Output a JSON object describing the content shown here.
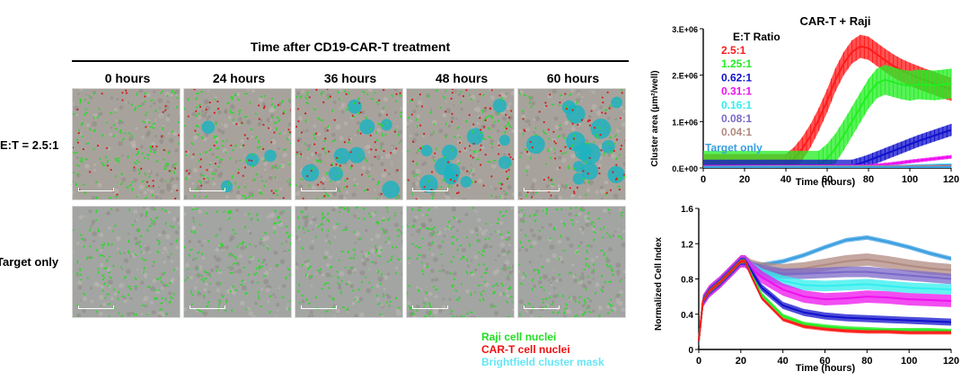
{
  "figure": {
    "title": "Time after CD19-CAR-T treatment",
    "columns": [
      "0 hours",
      "24 hours",
      "36 hours",
      "48 hours",
      "60 hours"
    ],
    "rows": [
      {
        "label": "E:T = 2.5:1",
        "clusters": [
          0,
          0.25,
          0.55,
          0.8,
          0.9
        ]
      },
      {
        "label": "Target only",
        "clusters": [
          0,
          0,
          0,
          0,
          0
        ]
      }
    ],
    "legend": [
      {
        "label": "Raji cell nuclei",
        "color": "#22dd22"
      },
      {
        "label": "CAR-T  cell nuclei",
        "color": "#ee1111"
      },
      {
        "label": "Brightfield cluster mask",
        "color": "#66e6f5"
      }
    ]
  },
  "chart_data": [
    {
      "type": "line",
      "title": "CAR-T + Raji",
      "xlabel": "Time (hours)",
      "ylabel": "Cluster area (μm²/well)",
      "xlim": [
        0,
        120
      ],
      "ylim": [
        0,
        3000000
      ],
      "x_ticks": [
        0,
        20,
        40,
        60,
        80,
        100,
        120
      ],
      "x_tick_labels": [
        "0",
        "20",
        "40",
        "60",
        "80",
        "100",
        "120"
      ],
      "y_ticks": [
        0,
        1000000,
        2000000,
        3000000
      ],
      "y_tick_labels": [
        "0.E+00",
        "1.E+06",
        "2.E+06",
        "3.E+06"
      ],
      "legend_title": "E:T Ratio",
      "legend_position": "top-left",
      "series": [
        {
          "name": "2.5:1",
          "color": "#ff1a1a",
          "err": 250000,
          "x": [
            0,
            40,
            44,
            48,
            52,
            56,
            60,
            64,
            68,
            72,
            76,
            80,
            84,
            88,
            92,
            96,
            100,
            104,
            108,
            112,
            116,
            120
          ],
          "y": [
            50000,
            50000,
            200000,
            420000,
            700000,
            1050000,
            1450000,
            1900000,
            2250000,
            2500000,
            2620000,
            2580000,
            2450000,
            2320000,
            2200000,
            2100000,
            2020000,
            1950000,
            1880000,
            1820000,
            1750000,
            1700000
          ]
        },
        {
          "name": "1.25:1",
          "color": "#22ee22",
          "err": 320000,
          "x": [
            0,
            56,
            60,
            64,
            68,
            72,
            76,
            80,
            84,
            88,
            92,
            96,
            100,
            104,
            108,
            112,
            116,
            120
          ],
          "y": [
            50000,
            50000,
            200000,
            420000,
            700000,
            1000000,
            1300000,
            1600000,
            1820000,
            1900000,
            1850000,
            1800000,
            1770000,
            1800000,
            1790000,
            1780000,
            1800000,
            1820000
          ]
        },
        {
          "name": "0.62:1",
          "color": "#1111cc",
          "err": 130000,
          "x": [
            0,
            72,
            76,
            80,
            84,
            88,
            92,
            96,
            100,
            104,
            108,
            112,
            116,
            120
          ],
          "y": [
            50000,
            50000,
            100000,
            160000,
            230000,
            300000,
            370000,
            440000,
            510000,
            580000,
            640000,
            700000,
            760000,
            820000
          ]
        },
        {
          "name": "0.31:1",
          "color": "#ee11ee",
          "err": 40000,
          "x": [
            0,
            80,
            90,
            100,
            110,
            120
          ],
          "y": [
            30000,
            40000,
            80000,
            140000,
            190000,
            240000
          ]
        },
        {
          "name": "0.16:1",
          "color": "#33eeee",
          "err": 20000,
          "x": [
            0,
            90,
            120
          ],
          "y": [
            30000,
            40000,
            80000
          ]
        },
        {
          "name": "0.08:1",
          "color": "#7b68c8",
          "err": 15000,
          "x": [
            0,
            90,
            120
          ],
          "y": [
            30000,
            35000,
            60000
          ]
        },
        {
          "name": "0.04:1",
          "color": "#b08a80",
          "err": 10000,
          "x": [
            0,
            120
          ],
          "y": [
            25000,
            40000
          ]
        },
        {
          "name": "Target only",
          "color": "#3a9ee0",
          "err": 10000,
          "x": [
            0,
            120
          ],
          "y": [
            20000,
            20000
          ]
        }
      ]
    },
    {
      "type": "line",
      "title": "",
      "xlabel": "Time (hours)",
      "ylabel": "Normalized Cell Index",
      "xlim": [
        0,
        120
      ],
      "ylim": [
        0,
        1.6
      ],
      "x_ticks": [
        0,
        20,
        40,
        60,
        80,
        100,
        120
      ],
      "x_tick_labels": [
        "0",
        "20",
        "40",
        "60",
        "80",
        "100",
        "120"
      ],
      "y_ticks": [
        0,
        0.4,
        0.8,
        1.2,
        1.6
      ],
      "y_tick_labels": [
        "0",
        "0.4",
        "0.8",
        "1.2",
        "1.6"
      ],
      "series": [
        {
          "color": "#3a9ee0",
          "err": 0.025,
          "x": [
            0,
            2,
            5,
            10,
            15,
            20,
            22,
            25,
            30,
            40,
            50,
            60,
            70,
            80,
            90,
            100,
            110,
            120
          ],
          "y": [
            0.1,
            0.55,
            0.66,
            0.76,
            0.88,
            1.0,
            1.0,
            0.96,
            0.96,
            1.0,
            1.07,
            1.16,
            1.24,
            1.27,
            1.22,
            1.16,
            1.09,
            1.03
          ]
        },
        {
          "color": "#b08a80",
          "err": 0.07,
          "x": [
            0,
            2,
            5,
            10,
            15,
            20,
            22,
            25,
            30,
            40,
            50,
            60,
            70,
            80,
            90,
            100,
            110,
            120
          ],
          "y": [
            0.1,
            0.55,
            0.66,
            0.76,
            0.88,
            1.0,
            1.0,
            0.95,
            0.92,
            0.9,
            0.92,
            0.96,
            1.0,
            1.02,
            0.99,
            0.95,
            0.92,
            0.9
          ]
        },
        {
          "color": "#7b68c8",
          "err": 0.06,
          "x": [
            0,
            2,
            5,
            10,
            15,
            20,
            22,
            25,
            30,
            40,
            50,
            60,
            70,
            80,
            90,
            100,
            110,
            120
          ],
          "y": [
            0.1,
            0.55,
            0.66,
            0.76,
            0.88,
            1.0,
            1.0,
            0.94,
            0.9,
            0.86,
            0.86,
            0.87,
            0.88,
            0.88,
            0.86,
            0.84,
            0.82,
            0.8
          ]
        },
        {
          "color": "#33eeee",
          "err": 0.06,
          "x": [
            0,
            2,
            5,
            10,
            15,
            20,
            22,
            25,
            30,
            40,
            50,
            60,
            70,
            80,
            90,
            100,
            110,
            120
          ],
          "y": [
            0.1,
            0.55,
            0.66,
            0.76,
            0.88,
            1.0,
            1.0,
            0.93,
            0.86,
            0.78,
            0.73,
            0.72,
            0.73,
            0.74,
            0.72,
            0.7,
            0.69,
            0.68
          ]
        },
        {
          "color": "#ee11ee",
          "err": 0.07,
          "x": [
            0,
            2,
            5,
            10,
            15,
            20,
            22,
            25,
            30,
            40,
            50,
            60,
            70,
            80,
            90,
            100,
            110,
            120
          ],
          "y": [
            0.1,
            0.55,
            0.66,
            0.76,
            0.88,
            1.0,
            1.0,
            0.92,
            0.82,
            0.68,
            0.6,
            0.57,
            0.58,
            0.6,
            0.59,
            0.57,
            0.56,
            0.55
          ]
        },
        {
          "color": "#1111cc",
          "err": 0.04,
          "x": [
            0,
            2,
            5,
            10,
            15,
            20,
            22,
            25,
            30,
            40,
            50,
            60,
            70,
            80,
            90,
            100,
            110,
            120
          ],
          "y": [
            0.1,
            0.55,
            0.66,
            0.76,
            0.88,
            1.0,
            1.0,
            0.88,
            0.7,
            0.5,
            0.42,
            0.38,
            0.36,
            0.35,
            0.34,
            0.33,
            0.32,
            0.31
          ]
        },
        {
          "color": "#22ee22",
          "err": 0.025,
          "x": [
            0,
            2,
            5,
            10,
            15,
            20,
            22,
            25,
            30,
            40,
            50,
            60,
            70,
            80,
            90,
            100,
            110,
            120
          ],
          "y": [
            0.1,
            0.55,
            0.66,
            0.76,
            0.88,
            1.0,
            1.0,
            0.85,
            0.62,
            0.38,
            0.29,
            0.26,
            0.24,
            0.23,
            0.22,
            0.22,
            0.22,
            0.21
          ]
        },
        {
          "color": "#ff1a1a",
          "err": 0.02,
          "x": [
            0,
            2,
            5,
            10,
            15,
            20,
            22,
            25,
            30,
            40,
            50,
            60,
            70,
            80,
            90,
            100,
            110,
            120
          ],
          "y": [
            0.1,
            0.55,
            0.66,
            0.76,
            0.88,
            1.0,
            1.0,
            0.83,
            0.58,
            0.34,
            0.26,
            0.23,
            0.21,
            0.2,
            0.2,
            0.19,
            0.19,
            0.19
          ]
        }
      ]
    }
  ]
}
